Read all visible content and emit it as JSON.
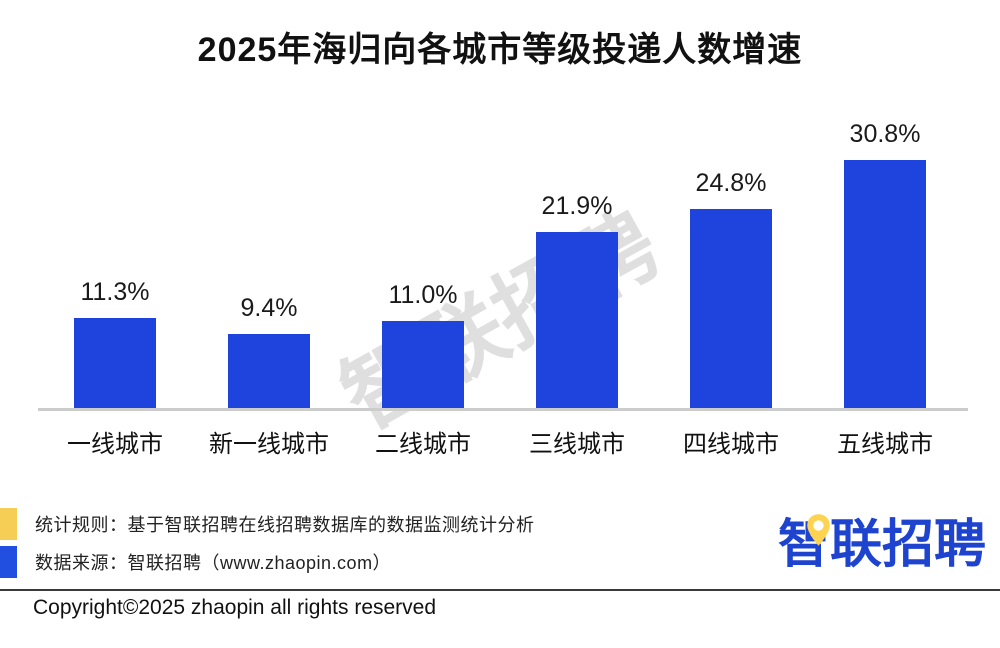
{
  "title": "2025年海归向各城市等级投递人数增速",
  "chart_data": {
    "type": "bar",
    "title": "2025年海归向各城市等级投递人数增速",
    "categories": [
      "一线城市",
      "新一线城市",
      "二线城市",
      "三线城市",
      "四线城市",
      "五线城市"
    ],
    "values": [
      11.3,
      9.4,
      11.0,
      21.9,
      24.8,
      30.8
    ],
    "value_labels": [
      "11.3%",
      "9.4%",
      "11.0%",
      "21.9%",
      "24.8%",
      "30.8%"
    ],
    "xlabel": "",
    "ylabel": "",
    "ylim": [
      0,
      33
    ],
    "grid": false,
    "legend": "none",
    "bar_color": "#1f44de"
  },
  "watermark": "智联招聘",
  "footer": {
    "legend_items": [
      {
        "swatch_color": "#f6ce55",
        "text": "统计规则：基于智联招聘在线招聘数据库的数据监测统计分析"
      },
      {
        "swatch_color": "#2150e0",
        "text": "数据来源：智联招聘（www.zhaopin.com）"
      }
    ],
    "logo_text": "智联招聘",
    "copyright": "Copyright©2025 zhaopin all rights reserved"
  },
  "colors": {
    "bar_blue": "#1f44de",
    "logo_blue": "#1d43cf",
    "legend_yellow": "#f6ce55",
    "legend_blue": "#2150e0",
    "axis_gray": "#cccccc",
    "watermark_gray": "#c6c6c6",
    "pin_yellow": "#fdd34f"
  }
}
